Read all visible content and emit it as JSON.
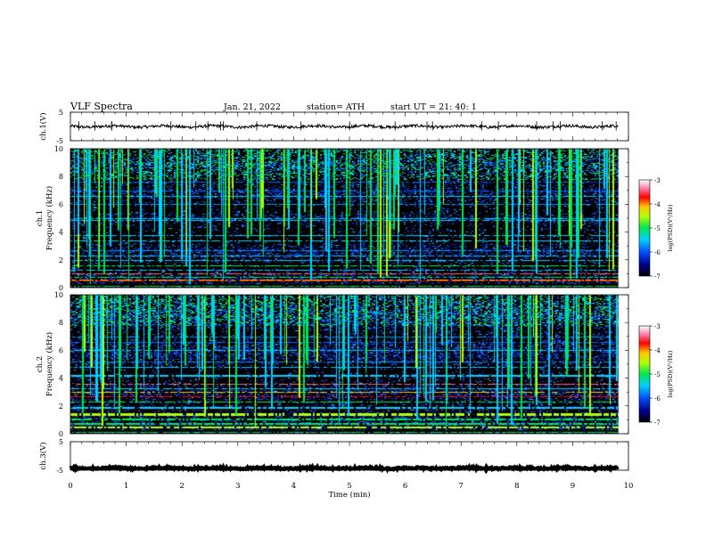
{
  "header": {
    "title": "VLF  Spectra",
    "date": "Jan. 21, 2022",
    "station": "station= ATH",
    "start": "start  UT  =   21: 40: 1"
  },
  "chart_data": [
    {
      "id": "ch1-voltage",
      "type": "line",
      "ylabel": "ch.1(V)",
      "ylim": [
        -5,
        5
      ],
      "yticks": [
        5,
        -5
      ],
      "x_range": [
        0,
        9.82
      ],
      "baseline": 0,
      "amplitude": 0.5,
      "color": "#000000"
    },
    {
      "id": "ch1-spectrogram",
      "type": "heatmap",
      "ylabel_channel": "ch.1",
      "ylabel": "Frequency (kHz)",
      "ylim": [
        0,
        10
      ],
      "yticks": [
        0,
        2,
        4,
        6,
        8,
        10
      ],
      "x_range": [
        0,
        9.82
      ],
      "colorbar": {
        "label": "log(PSD)(V²/Hz)",
        "range": [
          -7,
          -3
        ],
        "ticks": [
          "-3",
          "-4",
          "-5",
          "-6",
          "-7"
        ]
      }
    },
    {
      "id": "ch2-spectrogram",
      "type": "heatmap",
      "ylabel_channel": "ch.2",
      "ylabel": "Frequency (kHz)",
      "ylim": [
        0,
        10
      ],
      "yticks": [
        0,
        2,
        4,
        6,
        8,
        10
      ],
      "x_range": [
        0,
        9.82
      ],
      "colorbar": {
        "label": "log(PSD)(V²/Hz)",
        "range": [
          -7,
          -3
        ],
        "ticks": [
          "-3",
          "-4",
          "-5",
          "-6",
          "-7"
        ]
      }
    },
    {
      "id": "ch3-voltage",
      "type": "line",
      "ylabel": "ch.3(V)",
      "ylim": [
        -5,
        5
      ],
      "yticks": [
        5,
        -5
      ],
      "x_range": [
        0,
        9.82
      ],
      "baseline": -4.3,
      "amplitude": 0.3,
      "color": "#000000"
    }
  ],
  "xaxis": {
    "label": "Time  (min)",
    "range": [
      0,
      10
    ],
    "ticks": [
      0,
      1,
      2,
      3,
      4,
      5,
      6,
      7,
      8,
      9,
      10
    ]
  }
}
